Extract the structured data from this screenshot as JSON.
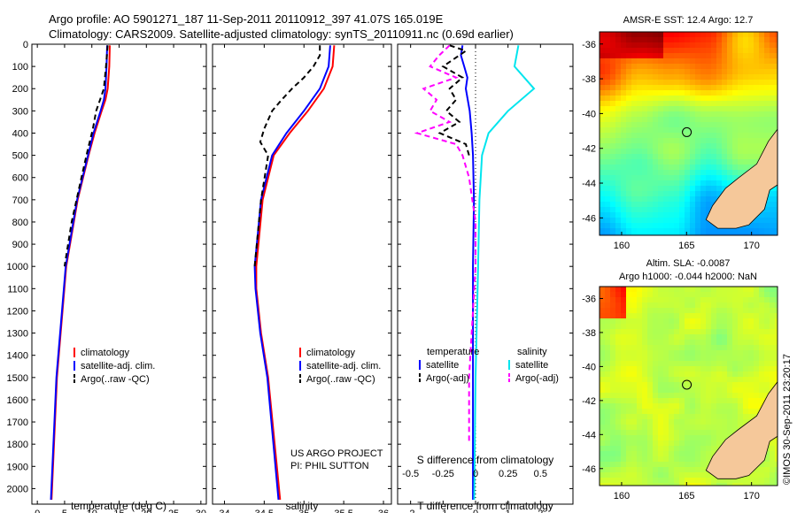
{
  "header": {
    "line1": "Argo profile: AO 5901271_187 11-Sep-2011 20110912_397 41.07S 165.019E",
    "line2": "Climatology: CARS2009. Satellite-adjusted climatology: synTS_20110911.nc (0.69d earlier)"
  },
  "colors": {
    "climatology": "#ff0000",
    "satellite": "#0000ff",
    "argo": "#000000",
    "salinity_satellite": "#00e5ee",
    "salinity_argo": "#ff00ff",
    "land": "#f5c89a"
  },
  "annotations": {
    "project": "US ARGO PROJECT",
    "pi": "PI: PHIL SUTTON",
    "credit": "©IMOS 30-Sep-2011 23:20:17"
  },
  "chart_data": [
    {
      "type": "line",
      "panel": "temperature",
      "xlabel": "temperature (deg C)",
      "ylabel": "",
      "xlim": [
        -1,
        31
      ],
      "ylim": [
        2070,
        0
      ],
      "xticks": [
        0,
        5,
        10,
        15,
        20,
        25,
        30
      ],
      "yticks": [
        0,
        100,
        200,
        300,
        400,
        500,
        600,
        700,
        800,
        900,
        1000,
        1100,
        1200,
        1300,
        1400,
        1500,
        1600,
        1700,
        1800,
        1900,
        2000
      ],
      "legend": [
        "climatology",
        "satellite-adj. clim.",
        "Argo(..raw -QC)"
      ],
      "series": [
        {
          "name": "climatology",
          "depth": [
            5,
            100,
            200,
            250,
            300,
            400,
            500,
            700,
            1000,
            1500,
            2050
          ],
          "values": [
            13.3,
            13.2,
            12.9,
            12.5,
            11.8,
            10.5,
            9.4,
            7.4,
            5.3,
            3.6,
            2.6
          ]
        },
        {
          "name": "satellite-adj. clim.",
          "depth": [
            5,
            100,
            200,
            250,
            300,
            400,
            500,
            700,
            1000,
            1500,
            2050
          ],
          "values": [
            12.8,
            12.7,
            12.5,
            12.2,
            11.6,
            10.3,
            9.3,
            7.3,
            5.2,
            3.5,
            2.5
          ]
        },
        {
          "name": "Argo(..raw -QC)",
          "depth": [
            5,
            100,
            200,
            250,
            300,
            380,
            420,
            480,
            600,
            800,
            1000
          ],
          "values": [
            12.9,
            12.6,
            12.2,
            11.5,
            10.8,
            10.2,
            9.8,
            9.2,
            8.1,
            6.3,
            5.0
          ]
        }
      ]
    },
    {
      "type": "line",
      "panel": "salinity",
      "xlabel": "salinity",
      "xlim": [
        33.85,
        36.1
      ],
      "ylim": [
        2070,
        0
      ],
      "xticks": [
        34,
        34.5,
        35,
        35.5,
        36
      ],
      "xticklabels": [
        "34",
        "34.5",
        "35",
        "35.5",
        "36"
      ],
      "legend": [
        "climatology",
        "satellite-adj. clim.",
        "Argo(..raw -QC)"
      ],
      "series": [
        {
          "name": "climatology",
          "depth": [
            5,
            100,
            200,
            300,
            400,
            500,
            700,
            1000,
            1100,
            1300,
            1500,
            2050
          ],
          "values": [
            35.38,
            35.36,
            35.25,
            35.05,
            34.82,
            34.62,
            34.48,
            34.4,
            34.4,
            34.46,
            34.55,
            34.7
          ]
        },
        {
          "name": "satellite-adj. clim.",
          "depth": [
            5,
            100,
            200,
            300,
            400,
            500,
            700,
            1000,
            1100,
            1300,
            1500,
            2050
          ],
          "values": [
            35.33,
            35.31,
            35.2,
            35.0,
            34.78,
            34.6,
            34.46,
            34.38,
            34.39,
            34.45,
            34.54,
            34.68
          ]
        },
        {
          "name": "Argo(..raw -QC)",
          "depth": [
            5,
            50,
            100,
            150,
            200,
            250,
            300,
            380,
            440,
            500,
            700,
            1000
          ],
          "values": [
            35.2,
            35.2,
            35.12,
            35.0,
            34.85,
            34.72,
            34.6,
            34.5,
            34.45,
            34.55,
            34.46,
            34.38
          ]
        }
      ]
    },
    {
      "type": "line",
      "panel": "difference",
      "xlabel": "T difference from climatology",
      "xlabel2": "S difference from climatology",
      "xlim": [
        -2.4,
        3.0
      ],
      "ylim": [
        2070,
        0
      ],
      "xticks": [
        -2,
        -1,
        0,
        1,
        2
      ],
      "s_ticks": [
        -0.5,
        -0.25,
        0,
        0.25,
        0.5
      ],
      "s_ticklabels": [
        "-0.5",
        "-0.25",
        "0",
        "0.25",
        "0.5"
      ],
      "legend_temperature": {
        "title": "temperature",
        "items": [
          "satellite",
          "Argo(-adj)"
        ]
      },
      "legend_salinity": {
        "title": "salinity",
        "items": [
          "satellite",
          "Argo(-adj)"
        ]
      },
      "series": [
        {
          "name": "satellite",
          "depth": [
            5,
            50,
            100,
            150,
            200,
            300,
            400,
            500,
            700,
            1000,
            1500,
            2050
          ],
          "values": [
            -0.4,
            -0.45,
            -0.35,
            -0.25,
            -0.3,
            -0.18,
            -0.12,
            -0.08,
            -0.05,
            -0.08,
            -0.08,
            -0.08
          ]
        },
        {
          "name": "Argo(-adj)",
          "depth": [
            5,
            30,
            60,
            100,
            150,
            200,
            250,
            300,
            350,
            400,
            450,
            500
          ],
          "values": [
            -0.8,
            -0.3,
            -0.6,
            -1.0,
            -0.4,
            -0.8,
            -0.6,
            -0.9,
            -0.5,
            -1.1,
            -0.3,
            -0.2
          ]
        },
        {
          "name": "satellite",
          "depth": [
            5,
            100,
            200,
            300,
            400,
            500,
            700,
            1000,
            1500,
            2050
          ],
          "values": [
            0.33,
            0.3,
            0.45,
            0.25,
            0.1,
            0.05,
            0.03,
            0.02,
            0.0,
            -0.01
          ]
        },
        {
          "name": "Argo(-adj)",
          "depth": [
            5,
            50,
            100,
            150,
            200,
            250,
            300,
            350,
            400,
            450,
            500,
            600,
            800,
            1000,
            1200,
            1500,
            1800
          ],
          "values": [
            -0.2,
            -0.28,
            -0.35,
            -0.15,
            -0.4,
            -0.3,
            -0.35,
            -0.2,
            -0.45,
            -0.15,
            -0.1,
            -0.05,
            0.0,
            0.0,
            -0.02,
            -0.05,
            -0.05
          ]
        }
      ]
    },
    {
      "type": "heatmap",
      "panel": "sst-map",
      "title": "AMSR-E SST: 12.4 Argo: 12.7",
      "xlim": [
        158.3,
        172
      ],
      "ylim": [
        -47,
        -35.3
      ],
      "xticks": [
        160,
        165,
        170
      ],
      "yticks": [
        -36,
        -38,
        -40,
        -42,
        -44,
        -46
      ],
      "argo_position": [
        165.019,
        -41.07
      ]
    },
    {
      "type": "heatmap",
      "panel": "sla-map",
      "title": "Altim. SLA: -0.0087",
      "subtitle": "Argo h1000: -0.044 h2000: NaN",
      "xlim": [
        158.3,
        172
      ],
      "ylim": [
        -47,
        -35.3
      ],
      "xticks": [
        160,
        165,
        170
      ],
      "yticks": [
        -36,
        -38,
        -40,
        -42,
        -44,
        -46
      ],
      "argo_position": [
        165.019,
        -41.07
      ]
    }
  ]
}
